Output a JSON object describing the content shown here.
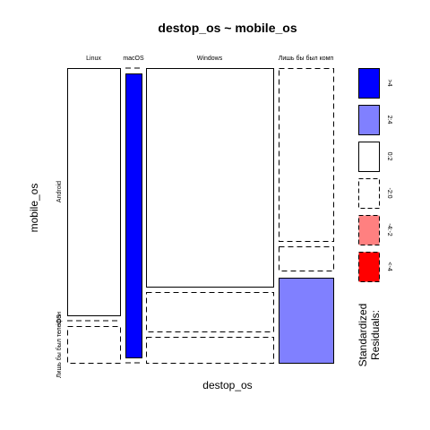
{
  "chart_data": {
    "type": "mosaic",
    "title": "destop_os ~ mobile_os",
    "xlabel": "destop_os",
    "ylabel": "mobile_os",
    "x_categories": [
      "Linux",
      "macOS",
      "Windows",
      "Лишь бы был комп"
    ],
    "y_categories": [
      "Android",
      "iOS",
      "Лишь бы был телефон"
    ],
    "y_tick_labels": [
      "Android",
      "iOS",
      "Лишь бы был телефон"
    ],
    "cells": [
      {
        "x": "Linux",
        "y": "Android",
        "residual_band": "0:2"
      },
      {
        "x": "Linux",
        "y": "iOS",
        "residual_band": "-2:0"
      },
      {
        "x": "Linux",
        "y": "Лишь бы был телефон",
        "residual_band": "-2:0"
      },
      {
        "x": "macOS",
        "y": "Android",
        "residual_band": "-2:0"
      },
      {
        "x": "macOS",
        "y": "iOS",
        "residual_band": ">4"
      },
      {
        "x": "macOS",
        "y": "Лишь бы был телефон",
        "residual_band": "-2:0"
      },
      {
        "x": "Windows",
        "y": "Android",
        "residual_band": "0:2"
      },
      {
        "x": "Windows",
        "y": "iOS",
        "residual_band": "-2:0"
      },
      {
        "x": "Windows",
        "y": "Лишь бы был телефон",
        "residual_band": "-2:0"
      },
      {
        "x": "Лишь бы был комп",
        "y": "Android",
        "residual_band": "-2:0"
      },
      {
        "x": "Лишь бы был комп",
        "y": "iOS",
        "residual_band": "-2:0"
      },
      {
        "x": "Лишь бы был комп",
        "y": "Лишь бы был телефон",
        "residual_band": "2:4"
      }
    ],
    "legend": {
      "title_lines": [
        "Standardized",
        "Residuals:"
      ],
      "placement": "right",
      "bands": [
        {
          "label": ">4",
          "fill": "#0000ff",
          "dashed": false
        },
        {
          "label": "2:4",
          "fill": "#8080ff",
          "dashed": false
        },
        {
          "label": "0:2",
          "fill": "#ffffff",
          "dashed": false
        },
        {
          "label": "-2:0",
          "fill": "#ffffff",
          "dashed": true
        },
        {
          "label": "-4:-2",
          "fill": "#ff8080",
          "dashed": true
        },
        {
          "label": "<-4",
          "fill": "#ff0000",
          "dashed": true
        }
      ]
    }
  }
}
